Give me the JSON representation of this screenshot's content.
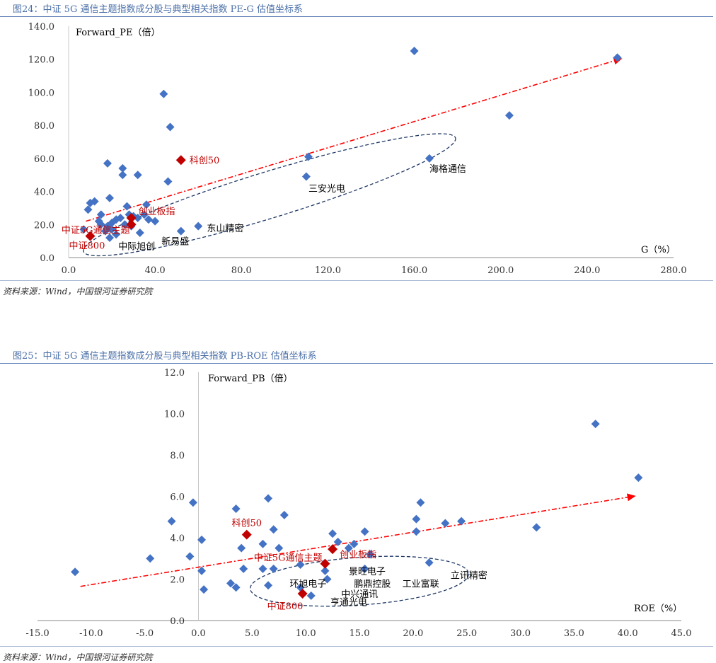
{
  "figures": {
    "fig24": {
      "title": "图24：中证 5G 通信主题指数成分股与典型相关指数 PE-G 估值坐标系",
      "source": "资料来源：Wind，中国银河证券研究院"
    },
    "fig25": {
      "title": "图25：中证 5G 通信主题指数成分股与典型相关指数 PB-ROE 估值坐标系",
      "source": "资料来源：Wind，中国银河证券研究院"
    }
  },
  "colors": {
    "stock": "#4472c4",
    "index": "#c00000",
    "trend": "#ff0000",
    "ellipse": "#1f3864",
    "axis": "#888888",
    "tick": "#333333"
  },
  "chart_data": [
    {
      "type": "scatter",
      "title": "中证 5G 通信主题指数成分股与典型相关指数 PE-G 估值坐标系",
      "xlabel": "G（%）",
      "ylabel": "Forward_PE（倍）",
      "xlim": [
        0,
        280
      ],
      "ylim": [
        0,
        140
      ],
      "xticks": [
        "0.0",
        "40.0",
        "80.0",
        "120.0",
        "160.0",
        "200.0",
        "240.0",
        "280.0"
      ],
      "yticks": [
        "0.0",
        "20.0",
        "40.0",
        "60.0",
        "80.0",
        "100.0",
        "120.0",
        "140.0"
      ],
      "stocks": [
        [
          160,
          125
        ],
        [
          254,
          121
        ],
        [
          44,
          99
        ],
        [
          47,
          79
        ],
        [
          204,
          86
        ],
        [
          111,
          61
        ],
        [
          167,
          60
        ],
        [
          18,
          57
        ],
        [
          25,
          54
        ],
        [
          25,
          50
        ],
        [
          32,
          50
        ],
        [
          46,
          46
        ],
        [
          110,
          49
        ],
        [
          19,
          36
        ],
        [
          10,
          33
        ],
        [
          12,
          34
        ],
        [
          9,
          29
        ],
        [
          15,
          26
        ],
        [
          27,
          31
        ],
        [
          36,
          32
        ],
        [
          24,
          24
        ],
        [
          28,
          26
        ],
        [
          30,
          25
        ],
        [
          32,
          24
        ],
        [
          35,
          26
        ],
        [
          37,
          23
        ],
        [
          22,
          23
        ],
        [
          20,
          21
        ],
        [
          18,
          19
        ],
        [
          17,
          16
        ],
        [
          20,
          17
        ],
        [
          22,
          14
        ],
        [
          26,
          20
        ],
        [
          29,
          19
        ],
        [
          33,
          15
        ],
        [
          19,
          12
        ],
        [
          15,
          20
        ],
        [
          40,
          22
        ],
        [
          52,
          16
        ],
        [
          60,
          19
        ],
        [
          7,
          17
        ],
        [
          14,
          22
        ]
      ],
      "indices": [
        {
          "name": "科创50",
          "x": 52,
          "y": 59
        },
        {
          "name": "创业板指",
          "x": 29,
          "y": 24
        },
        {
          "name": "中证5G通信主题",
          "x": 29,
          "y": 20
        },
        {
          "name": "中证800",
          "x": 10,
          "y": 13
        }
      ],
      "labels": [
        {
          "text": "海格通信",
          "x": 167,
          "y": 54
        },
        {
          "text": "三安光电",
          "x": 111,
          "y": 42
        },
        {
          "text": "东山精密",
          "x": 64,
          "y": 18
        },
        {
          "text": "中际旭创",
          "x": 23,
          "y": 7
        },
        {
          "text": "新易盛",
          "x": 43,
          "y": 10
        }
      ],
      "trend": [
        [
          8,
          22
        ],
        [
          255,
          120
        ]
      ],
      "ellipse": {
        "cx": 93,
        "cy": 38,
        "rx": 90,
        "ry": 14,
        "angle_deg": -17
      }
    },
    {
      "type": "scatter",
      "title": "中证 5G 通信主题指数成分股与典型相关指数 PB-ROE 估值坐标系",
      "xlabel": "ROE（%）",
      "ylabel": "Forward_PB（倍）",
      "xlim": [
        -15,
        45
      ],
      "ylim": [
        0,
        12
      ],
      "xticks": [
        "-15.0",
        "-10.0",
        "-5.0",
        "0.0",
        "5.0",
        "10.0",
        "15.0",
        "20.0",
        "25.0",
        "30.0",
        "35.0",
        "40.0",
        "45.0"
      ],
      "yticks": [
        "0.0",
        "2.0",
        "4.0",
        "6.0",
        "8.0",
        "10.0",
        "12.0"
      ],
      "stocks": [
        [
          -11.5,
          2.35
        ],
        [
          -4.5,
          3.0
        ],
        [
          -2.5,
          4.8
        ],
        [
          -0.5,
          5.7
        ],
        [
          -0.8,
          3.1
        ],
        [
          0.3,
          3.9
        ],
        [
          0.3,
          2.4
        ],
        [
          0.5,
          1.5
        ],
        [
          3.5,
          5.4
        ],
        [
          6.5,
          5.9
        ],
        [
          8,
          5.1
        ],
        [
          7,
          4.4
        ],
        [
          4,
          3.5
        ],
        [
          4.2,
          2.5
        ],
        [
          3,
          1.8
        ],
        [
          3.5,
          1.6
        ],
        [
          6,
          3.7
        ],
        [
          6,
          2.5
        ],
        [
          7.5,
          3.5
        ],
        [
          7,
          2.5
        ],
        [
          6.5,
          1.7
        ],
        [
          9.5,
          2.7
        ],
        [
          9.5,
          1.6
        ],
        [
          10.5,
          1.2
        ],
        [
          12.5,
          4.2
        ],
        [
          13,
          3.8
        ],
        [
          14,
          3.5
        ],
        [
          15.5,
          4.3
        ],
        [
          11.8,
          2.4
        ],
        [
          12,
          2.0
        ],
        [
          15.5,
          2.5
        ],
        [
          20.3,
          4.9
        ],
        [
          20.3,
          4.3
        ],
        [
          20.7,
          5.7
        ],
        [
          23,
          4.7
        ],
        [
          24.5,
          4.8
        ],
        [
          21.5,
          2.8
        ],
        [
          31.5,
          4.5
        ],
        [
          37,
          9.5
        ],
        [
          41,
          6.9
        ],
        [
          14.5,
          3.7
        ],
        [
          16,
          3.2
        ]
      ],
      "indices": [
        {
          "name": "科创50",
          "x": 4.5,
          "y": 4.15
        },
        {
          "name": "创业板指",
          "x": 12.5,
          "y": 3.45
        },
        {
          "name": "中证5G通信主题",
          "x": 11.8,
          "y": 2.75
        },
        {
          "name": "中证800",
          "x": 9.7,
          "y": 1.3
        }
      ],
      "labels": [
        {
          "text": "立讯精密",
          "x": 23.5,
          "y": 2.2
        },
        {
          "text": "鹏鼎控股",
          "x": 14.5,
          "y": 1.8
        },
        {
          "text": "工业富联",
          "x": 19,
          "y": 1.8
        },
        {
          "text": "景旺电子",
          "x": 14,
          "y": 2.4
        },
        {
          "text": "环旭电子",
          "x": 8.5,
          "y": 1.8
        },
        {
          "text": "中兴通讯",
          "x": 13.3,
          "y": 1.3
        },
        {
          "text": "亨通光电",
          "x": 12.3,
          "y": 0.9
        }
      ],
      "trend": [
        [
          -11,
          1.65
        ],
        [
          40.5,
          6.0
        ]
      ],
      "ellipse": {
        "cx": 15,
        "cy": 1.9,
        "rx": 10.2,
        "ry": 1.15,
        "angle_deg": -4
      }
    }
  ]
}
